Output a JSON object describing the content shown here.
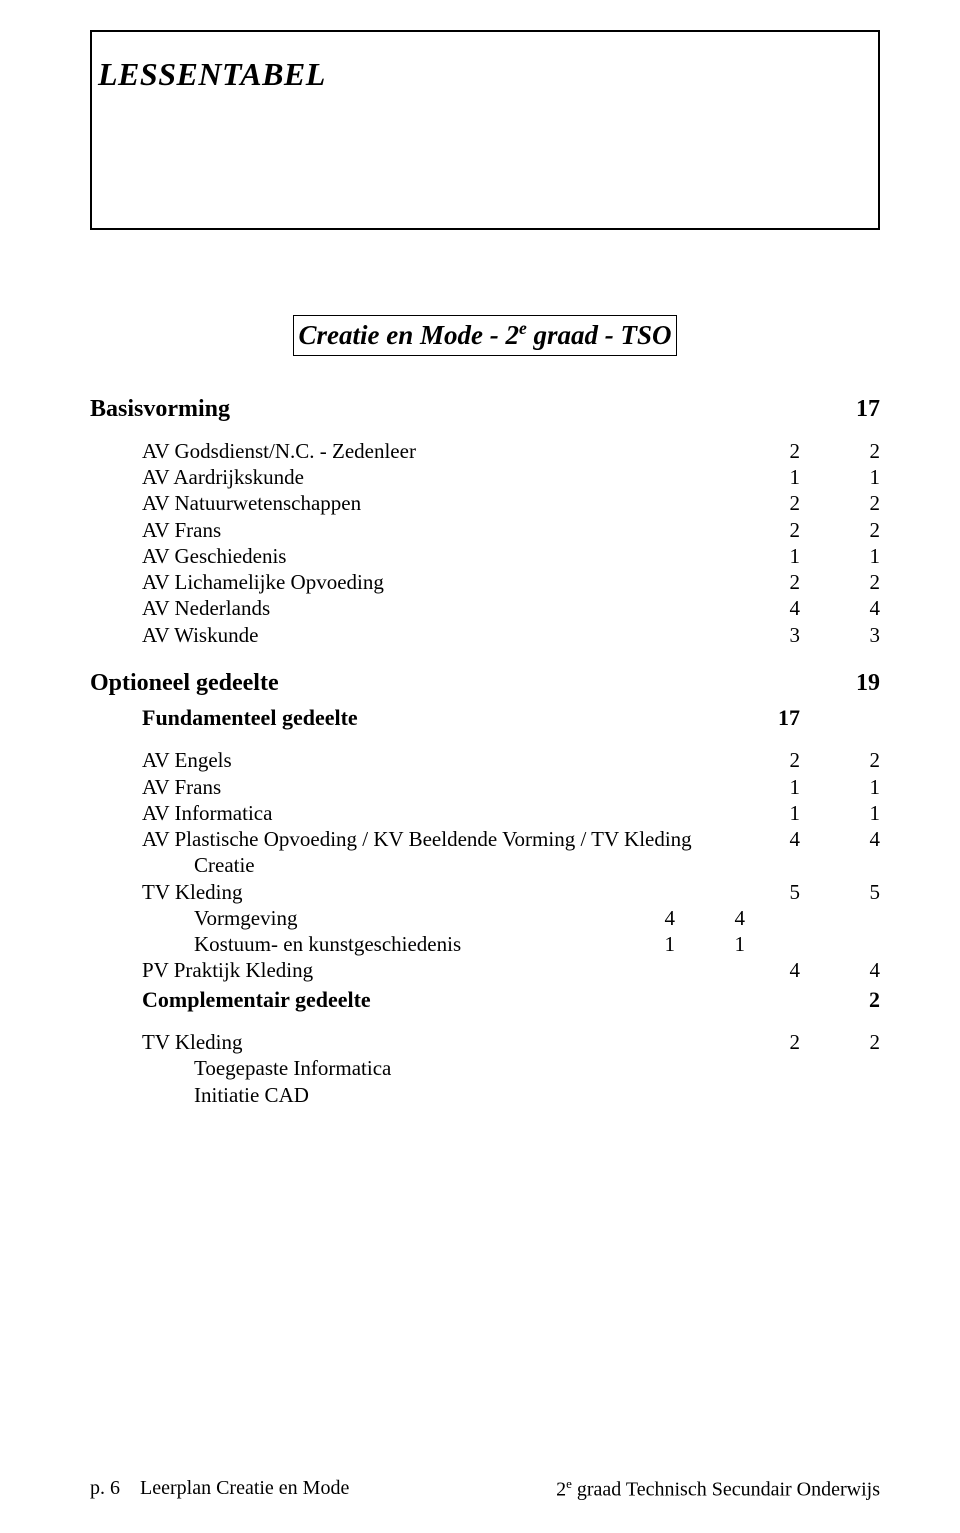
{
  "title": "LESSENTABEL",
  "subtitle_prefix": "Creatie en Mode - 2",
  "subtitle_sup": "e",
  "subtitle_suffix": " graad - TSO",
  "basisvorming_label": "Basisvorming",
  "basisvorming_total": "17",
  "basis_rows": [
    {
      "label": "AV Godsdienst/N.C. - Zedenleer",
      "v1": "2",
      "v2": "2"
    },
    {
      "label": "AV Aardrijkskunde",
      "v1": "1",
      "v2": "1"
    },
    {
      "label": "AV Natuurwetenschappen",
      "v1": "2",
      "v2": "2"
    },
    {
      "label": "AV Frans",
      "v1": "2",
      "v2": "2"
    },
    {
      "label": "AV Geschiedenis",
      "v1": "1",
      "v2": "1"
    },
    {
      "label": "AV Lichamelijke Opvoeding",
      "v1": "2",
      "v2": "2"
    },
    {
      "label": "AV Nederlands",
      "v1": "4",
      "v2": "4"
    },
    {
      "label": "AV Wiskunde",
      "v1": "3",
      "v2": "3"
    }
  ],
  "optioneel_label": "Optioneel gedeelte",
  "optioneel_total": "19",
  "fundamenteel_label": "Fundamenteel gedeelte",
  "fundamenteel_total": "17",
  "opt_rows_a": [
    {
      "label": "AV Engels",
      "v1": "2",
      "v2": "2"
    },
    {
      "label": "AV Frans",
      "v1": "1",
      "v2": "1"
    },
    {
      "label": "AV Informatica",
      "v1": "1",
      "v2": "1"
    },
    {
      "label": "AV Plastische Opvoeding / KV Beeldende Vorming / TV Kleding",
      "v1": "4",
      "v2": "4"
    }
  ],
  "creatie_label": "Creatie",
  "tv_kleding_label": "TV Kleding",
  "tv_kleding_v1": "5",
  "tv_kleding_v2": "5",
  "vormgeving": {
    "label": "Vormgeving",
    "v1": "4",
    "v2": "4"
  },
  "kostuum": {
    "label": "Kostuum- en kunstgeschiedenis",
    "v1": "1",
    "v2": "1"
  },
  "pv_praktijk": {
    "label": "PV Praktijk Kleding",
    "v1": "4",
    "v2": "4"
  },
  "complementair_label": "Complementair gedeelte",
  "complementair_total": "2",
  "tv_kleding2": {
    "label": "TV Kleding",
    "v1": "2",
    "v2": "2"
  },
  "toegepaste": "Toegepaste Informatica",
  "initiatie": "Initiatie CAD",
  "footer_left_prefix": "p. 6",
  "footer_left_rest": "Leerplan Creatie en Mode",
  "footer_right_prefix": "2",
  "footer_right_sup": "e",
  "footer_right_suffix": " graad Technisch Secundair Onderwijs"
}
